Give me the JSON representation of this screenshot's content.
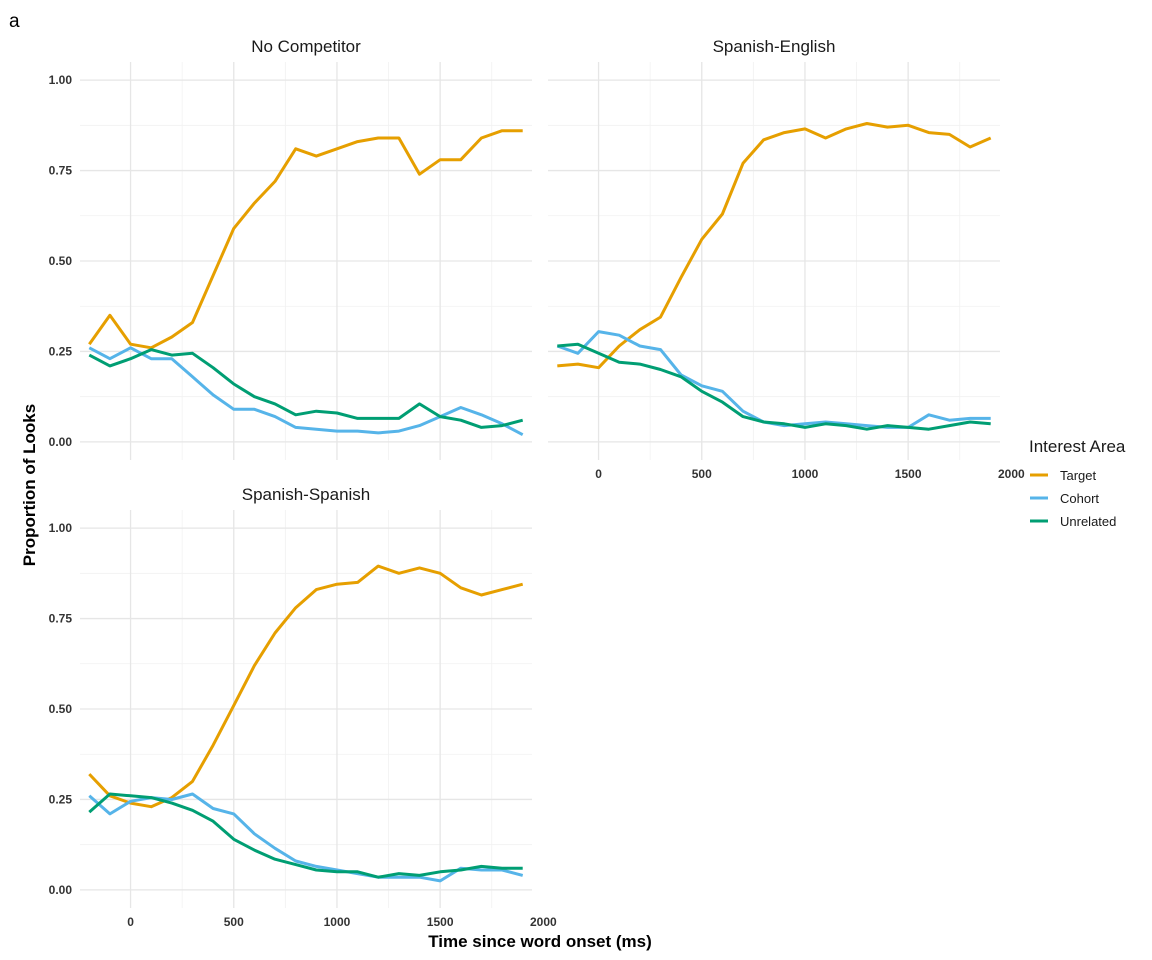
{
  "tag": "a",
  "chart_data": {
    "type": "line",
    "xlabel": "Time since word onset (ms)",
    "ylabel": "Proportion of Looks",
    "xlim": [
      -245,
      1945
    ],
    "ylim": [
      -0.05,
      1.05
    ],
    "x_ticks": [
      0,
      500,
      1000,
      1500,
      2000
    ],
    "y_ticks": [
      0.0,
      0.25,
      0.5,
      0.75,
      1.0
    ],
    "y_tick_labels": [
      "0.00",
      "0.25",
      "0.50",
      "0.75",
      "1.00"
    ],
    "x_tick_labels": [
      "0",
      "500",
      "1000",
      "1500",
      "2000"
    ],
    "grid": true,
    "legend": {
      "title": "Interest Area",
      "placement": "right",
      "entries": [
        {
          "label": "Target",
          "color": "#E69F00"
        },
        {
          "label": "Cohort",
          "color": "#56B4E9"
        },
        {
          "label": "Unrelated",
          "color": "#009E73"
        }
      ]
    },
    "x": [
      -200,
      -100,
      0,
      100,
      200,
      300,
      400,
      500,
      600,
      700,
      800,
      900,
      1000,
      1100,
      1200,
      1300,
      1400,
      1500,
      1600,
      1700,
      1800,
      1900
    ],
    "panels": [
      {
        "title": "No Competitor",
        "series": [
          {
            "name": "Target",
            "color": "#E69F00",
            "values": [
              0.27,
              0.35,
              0.27,
              0.26,
              0.29,
              0.33,
              0.46,
              0.59,
              0.66,
              0.72,
              0.81,
              0.79,
              0.81,
              0.83,
              0.84,
              0.84,
              0.74,
              0.78,
              0.78,
              0.84,
              0.86,
              0.86
            ]
          },
          {
            "name": "Cohort",
            "color": "#56B4E9",
            "values": [
              0.26,
              0.23,
              0.26,
              0.23,
              0.23,
              0.18,
              0.13,
              0.09,
              0.09,
              0.07,
              0.04,
              0.035,
              0.03,
              0.03,
              0.025,
              0.03,
              0.045,
              0.07,
              0.095,
              0.075,
              0.05,
              0.02
            ]
          },
          {
            "name": "Unrelated",
            "color": "#009E73",
            "values": [
              0.24,
              0.21,
              0.23,
              0.255,
              0.24,
              0.245,
              0.205,
              0.16,
              0.125,
              0.105,
              0.075,
              0.085,
              0.08,
              0.065,
              0.065,
              0.065,
              0.105,
              0.07,
              0.06,
              0.04,
              0.045,
              0.06
            ]
          }
        ]
      },
      {
        "title": "Spanish-English",
        "series": [
          {
            "name": "Target",
            "color": "#E69F00",
            "values": [
              0.21,
              0.215,
              0.205,
              0.265,
              0.31,
              0.345,
              0.455,
              0.56,
              0.63,
              0.77,
              0.835,
              0.855,
              0.865,
              0.84,
              0.865,
              0.88,
              0.87,
              0.875,
              0.855,
              0.85,
              0.815,
              0.84
            ]
          },
          {
            "name": "Cohort",
            "color": "#56B4E9",
            "values": [
              0.265,
              0.245,
              0.305,
              0.295,
              0.265,
              0.255,
              0.185,
              0.155,
              0.14,
              0.085,
              0.055,
              0.045,
              0.05,
              0.055,
              0.05,
              0.045,
              0.04,
              0.04,
              0.075,
              0.06,
              0.065,
              0.065
            ]
          },
          {
            "name": "Unrelated",
            "color": "#009E73",
            "values": [
              0.265,
              0.27,
              0.245,
              0.22,
              0.215,
              0.2,
              0.18,
              0.14,
              0.11,
              0.07,
              0.055,
              0.05,
              0.04,
              0.05,
              0.045,
              0.035,
              0.045,
              0.04,
              0.035,
              0.045,
              0.055,
              0.05
            ]
          }
        ]
      },
      {
        "title": "Spanish-Spanish",
        "series": [
          {
            "name": "Target",
            "color": "#E69F00",
            "values": [
              0.32,
              0.26,
              0.24,
              0.23,
              0.255,
              0.3,
              0.4,
              0.51,
              0.62,
              0.71,
              0.78,
              0.83,
              0.845,
              0.85,
              0.895,
              0.875,
              0.89,
              0.875,
              0.835,
              0.815,
              0.83,
              0.845
            ]
          },
          {
            "name": "Cohort",
            "color": "#56B4E9",
            "values": [
              0.26,
              0.21,
              0.245,
              0.255,
              0.25,
              0.265,
              0.225,
              0.21,
              0.155,
              0.115,
              0.08,
              0.065,
              0.055,
              0.045,
              0.035,
              0.035,
              0.035,
              0.025,
              0.06,
              0.055,
              0.055,
              0.04
            ]
          },
          {
            "name": "Unrelated",
            "color": "#009E73",
            "values": [
              0.215,
              0.265,
              0.26,
              0.255,
              0.24,
              0.22,
              0.19,
              0.14,
              0.11,
              0.085,
              0.07,
              0.055,
              0.05,
              0.05,
              0.035,
              0.045,
              0.04,
              0.05,
              0.055,
              0.065,
              0.06,
              0.06
            ]
          }
        ]
      }
    ]
  }
}
